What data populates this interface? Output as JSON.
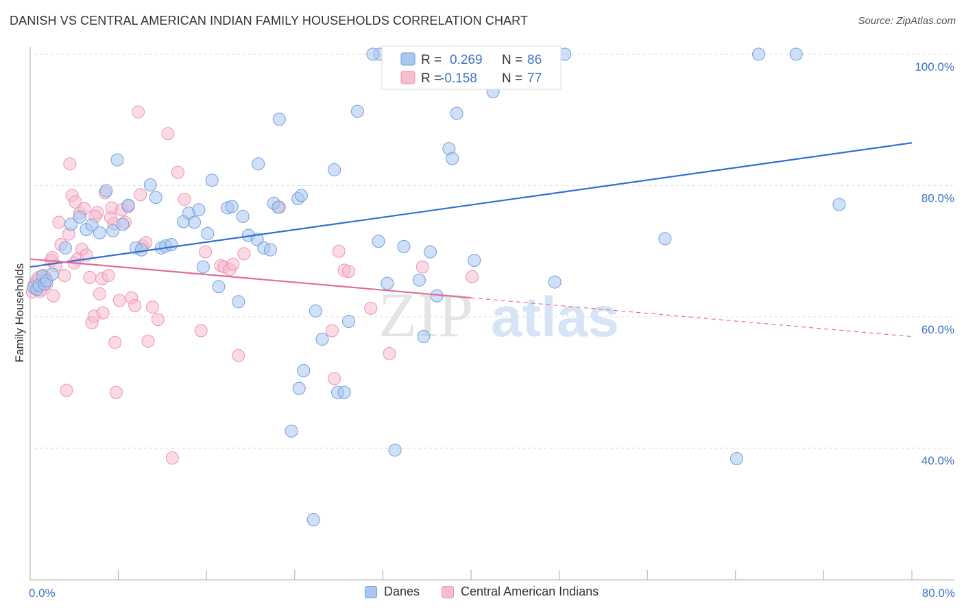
{
  "title": "DANISH VS CENTRAL AMERICAN INDIAN FAMILY HOUSEHOLDS CORRELATION CHART",
  "source": "Source: ZipAtlas.com",
  "watermark": {
    "zip": "ZIP",
    "atlas": "atlas"
  },
  "legend_top": {
    "row1": {
      "r_label": "R = ",
      "r_value": "0.269",
      "n_label": "N = ",
      "n_value": "86"
    },
    "row2": {
      "r_label": "R = ",
      "r_value": "-0.158",
      "n_label": "N = ",
      "n_value": "77"
    }
  },
  "legend_bottom": {
    "danes": "Danes",
    "cai": "Central American Indians"
  },
  "colors": {
    "danes_fill": "#a9c7ef",
    "danes_stroke": "#6f9ede",
    "danes_line": "#2e6fd0",
    "cai_fill": "#f6bcd0",
    "cai_stroke": "#ee93b2",
    "cai_line": "#e46b96",
    "grid": "#dddddd",
    "tick_label": "#3b73c8"
  },
  "chart_data": {
    "type": "scatter",
    "xlabel": "",
    "ylabel": "Family Households",
    "xlim": [
      0,
      80
    ],
    "ylim": [
      24,
      102
    ],
    "x_tick_labels": [
      {
        "value": 0,
        "label": "0.0%"
      },
      {
        "value": 80,
        "label": "80.0%"
      }
    ],
    "y_tick_labels": [
      {
        "value": 40,
        "label": "40.0%"
      },
      {
        "value": 60,
        "label": "60.0%"
      },
      {
        "value": 80,
        "label": "80.0%"
      },
      {
        "value": 100,
        "label": "100.0%"
      }
    ],
    "grid": true,
    "legend_position": "top-center",
    "series": [
      {
        "name": "Danes",
        "r": 0.269,
        "n": 86,
        "trend": {
          "x0": 0,
          "y0": 67.6,
          "x1": 80,
          "y1": 86.5
        },
        "points": [
          [
            0.3,
            64.5
          ],
          [
            0.6,
            64.2
          ],
          [
            0.8,
            64.8
          ],
          [
            1.1,
            66.2
          ],
          [
            1.3,
            65.0
          ],
          [
            1.5,
            65.5
          ],
          [
            2.0,
            66.5
          ],
          [
            3.2,
            70.5
          ],
          [
            3.7,
            74.1
          ],
          [
            4.5,
            75.2
          ],
          [
            5.1,
            73.3
          ],
          [
            5.6,
            74.0
          ],
          [
            6.3,
            72.8
          ],
          [
            6.9,
            79.2
          ],
          [
            7.5,
            73.1
          ],
          [
            7.9,
            83.9
          ],
          [
            8.4,
            74.1
          ],
          [
            8.9,
            77.0
          ],
          [
            9.6,
            70.5
          ],
          [
            10.1,
            70.2
          ],
          [
            10.9,
            80.1
          ],
          [
            11.4,
            78.2
          ],
          [
            11.9,
            70.5
          ],
          [
            12.3,
            70.8
          ],
          [
            12.8,
            71.0
          ],
          [
            13.9,
            74.5
          ],
          [
            14.4,
            75.8
          ],
          [
            14.9,
            74.4
          ],
          [
            15.3,
            76.3
          ],
          [
            15.7,
            67.6
          ],
          [
            16.1,
            72.7
          ],
          [
            16.5,
            80.8
          ],
          [
            17.1,
            64.6
          ],
          [
            17.9,
            76.6
          ],
          [
            18.3,
            76.8
          ],
          [
            18.9,
            62.3
          ],
          [
            19.3,
            75.3
          ],
          [
            19.8,
            72.4
          ],
          [
            20.6,
            71.8
          ],
          [
            20.7,
            83.3
          ],
          [
            21.2,
            70.5
          ],
          [
            21.8,
            70.2
          ],
          [
            22.1,
            77.3
          ],
          [
            22.5,
            76.7
          ],
          [
            22.6,
            90.1
          ],
          [
            23.7,
            42.6
          ],
          [
            24.3,
            78.0
          ],
          [
            24.4,
            49.1
          ],
          [
            24.6,
            78.5
          ],
          [
            24.8,
            51.8
          ],
          [
            25.9,
            60.9
          ],
          [
            26.5,
            56.6
          ],
          [
            27.6,
            82.4
          ],
          [
            27.9,
            48.5
          ],
          [
            28.5,
            48.5
          ],
          [
            28.9,
            59.3
          ],
          [
            29.7,
            91.3
          ],
          [
            31.6,
            71.5
          ],
          [
            31.7,
            100.0
          ],
          [
            32.4,
            65.1
          ],
          [
            33.1,
            39.7
          ],
          [
            33.9,
            70.7
          ],
          [
            35.3,
            65.6
          ],
          [
            35.7,
            57.0
          ],
          [
            36.3,
            69.9
          ],
          [
            36.9,
            63.2
          ],
          [
            38.0,
            85.6
          ],
          [
            38.3,
            84.1
          ],
          [
            38.7,
            91.0
          ],
          [
            40.3,
            68.6
          ],
          [
            42.0,
            94.3
          ],
          [
            42.8,
            100.0
          ],
          [
            44.1,
            100.0
          ],
          [
            45.9,
            100.0
          ],
          [
            47.6,
            65.3
          ],
          [
            48.5,
            100.0
          ],
          [
            57.6,
            71.9
          ],
          [
            64.1,
            38.4
          ],
          [
            66.1,
            100.0
          ],
          [
            69.5,
            100.0
          ],
          [
            73.4,
            77.1
          ],
          [
            25.7,
            29.1
          ],
          [
            37.4,
            96.1
          ],
          [
            33.6,
            100.0
          ],
          [
            40.6,
            100.0
          ],
          [
            31.1,
            100.0
          ]
        ]
      },
      {
        "name": "Central American Indians",
        "r": -0.158,
        "n": 77,
        "trend": {
          "x0": 0,
          "y0": 68.8,
          "x1": 40,
          "y1": 62.9,
          "dashed_to": {
            "x": 80,
            "y": 57.0
          }
        },
        "points": [
          [
            0.2,
            63.8
          ],
          [
            0.4,
            64.9
          ],
          [
            0.6,
            65.6
          ],
          [
            0.8,
            66.0
          ],
          [
            1.0,
            64.2
          ],
          [
            1.2,
            66.3
          ],
          [
            1.5,
            65.0
          ],
          [
            1.9,
            68.6
          ],
          [
            2.1,
            63.2
          ],
          [
            2.3,
            67.8
          ],
          [
            2.6,
            74.4
          ],
          [
            2.8,
            71.0
          ],
          [
            3.1,
            66.3
          ],
          [
            3.3,
            48.8
          ],
          [
            3.5,
            72.6
          ],
          [
            3.6,
            83.3
          ],
          [
            3.8,
            78.5
          ],
          [
            4.1,
            77.5
          ],
          [
            4.3,
            68.8
          ],
          [
            4.5,
            75.8
          ],
          [
            4.7,
            70.3
          ],
          [
            4.9,
            76.5
          ],
          [
            5.1,
            69.4
          ],
          [
            5.4,
            66.0
          ],
          [
            5.6,
            59.1
          ],
          [
            5.8,
            60.1
          ],
          [
            6.1,
            75.9
          ],
          [
            6.3,
            63.5
          ],
          [
            6.5,
            65.8
          ],
          [
            6.6,
            60.6
          ],
          [
            6.8,
            78.9
          ],
          [
            7.1,
            66.3
          ],
          [
            7.3,
            75.1
          ],
          [
            7.4,
            76.6
          ],
          [
            7.6,
            74.2
          ],
          [
            7.7,
            56.1
          ],
          [
            7.8,
            48.5
          ],
          [
            8.1,
            62.5
          ],
          [
            8.3,
            76.3
          ],
          [
            8.6,
            74.4
          ],
          [
            8.9,
            76.8
          ],
          [
            9.2,
            62.9
          ],
          [
            9.5,
            61.7
          ],
          [
            9.8,
            91.2
          ],
          [
            10.0,
            78.6
          ],
          [
            10.2,
            70.8
          ],
          [
            10.5,
            71.3
          ],
          [
            10.7,
            56.3
          ],
          [
            11.1,
            61.5
          ],
          [
            11.6,
            59.6
          ],
          [
            12.5,
            87.9
          ],
          [
            12.9,
            38.5
          ],
          [
            13.4,
            82.0
          ],
          [
            14.0,
            77.9
          ],
          [
            15.5,
            57.9
          ],
          [
            15.9,
            69.9
          ],
          [
            17.3,
            67.8
          ],
          [
            17.6,
            67.6
          ],
          [
            18.1,
            67.2
          ],
          [
            18.4,
            68.0
          ],
          [
            18.9,
            54.1
          ],
          [
            19.4,
            69.6
          ],
          [
            22.6,
            76.7
          ],
          [
            27.4,
            57.9
          ],
          [
            27.6,
            50.6
          ],
          [
            28.0,
            70.0
          ],
          [
            28.5,
            67.1
          ],
          [
            28.9,
            66.9
          ],
          [
            30.9,
            61.3
          ],
          [
            32.6,
            54.4
          ],
          [
            35.6,
            67.6
          ],
          [
            40.1,
            66.1
          ],
          [
            2.0,
            69.0
          ],
          [
            1.4,
            66.0
          ],
          [
            0.9,
            63.9
          ],
          [
            5.9,
            75.3
          ],
          [
            4.0,
            68.2
          ]
        ]
      }
    ]
  }
}
